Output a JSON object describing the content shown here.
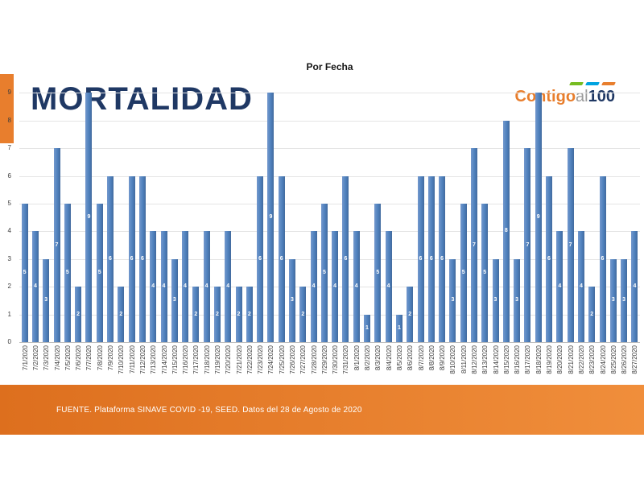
{
  "header": {
    "title": "MORTALIDAD",
    "logo": {
      "contigo": "Contigo",
      "al": "al",
      "hundred": "100"
    }
  },
  "chart_data": {
    "type": "bar",
    "title": "Por Fecha",
    "xlabel": "",
    "ylabel": "",
    "ylim": [
      0,
      9
    ],
    "yticks": [
      0,
      1,
      2,
      3,
      4,
      5,
      6,
      7,
      8,
      9
    ],
    "grid": true,
    "legend": "none",
    "bar_color": "#4f81bd",
    "bar_color_light": "#7398cd",
    "bar_color_dark": "#426a9e",
    "value_label_color": "#ffffff",
    "categories": [
      "7/1/2020",
      "7/2/2020",
      "7/3/2020",
      "7/4/2020",
      "7/5/2020",
      "7/6/2020",
      "7/7/2020",
      "7/8/2020",
      "7/9/2020",
      "7/10/2020",
      "7/11/2020",
      "7/12/2020",
      "7/13/2020",
      "7/14/2020",
      "7/15/2020",
      "7/16/2020",
      "7/17/2020",
      "7/18/2020",
      "7/19/2020",
      "7/20/2020",
      "7/21/2020",
      "7/22/2020",
      "7/23/2020",
      "7/24/2020",
      "7/25/2020",
      "7/26/2020",
      "7/27/2020",
      "7/28/2020",
      "7/29/2020",
      "7/30/2020",
      "7/31/2020",
      "8/1/2020",
      "8/2/2020",
      "8/3/2020",
      "8/4/2020",
      "8/5/2020",
      "8/6/2020",
      "8/7/2020",
      "8/8/2020",
      "8/9/2020",
      "8/10/2020",
      "8/11/2020",
      "8/12/2020",
      "8/13/2020",
      "8/14/2020",
      "8/15/2020",
      "8/16/2020",
      "8/17/2020",
      "8/18/2020",
      "8/19/2020",
      "8/20/2020",
      "8/21/2020",
      "8/22/2020",
      "8/23/2020",
      "8/24/2020",
      "8/25/2020",
      "8/26/2020",
      "8/27/2020"
    ],
    "values": [
      5,
      4,
      3,
      7,
      5,
      2,
      9,
      5,
      6,
      2,
      6,
      6,
      4,
      4,
      3,
      4,
      2,
      4,
      2,
      4,
      2,
      2,
      6,
      9,
      6,
      3,
      2,
      4,
      5,
      4,
      6,
      4,
      1,
      5,
      4,
      1,
      2,
      6,
      6,
      6,
      3,
      5,
      7,
      5,
      3,
      8,
      3,
      7,
      9,
      6,
      4,
      7,
      4,
      2,
      6,
      3,
      3,
      4
    ]
  },
  "footer": {
    "source": "FUENTE. Plataforma SINAVE COVID -19, SEED. Datos del 28 de Agosto de 2020"
  },
  "colors": {
    "accent_orange": "#E87E2D",
    "footer_orange_dark": "#DD6F1E",
    "footer_orange_light": "#F08E3B",
    "footer_text": "#ffffff",
    "title_navy": "#1F3864",
    "logo_gray": "#9b9b9b",
    "stripe_green": "#76BC21",
    "stripe_blue": "#00A3E0"
  }
}
